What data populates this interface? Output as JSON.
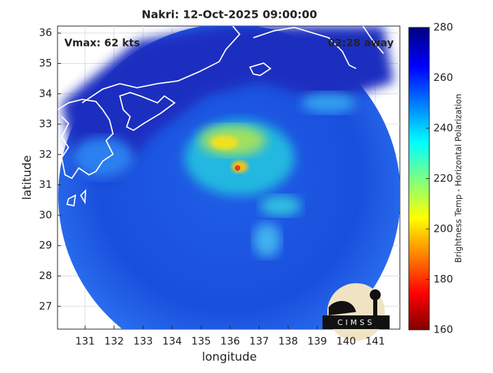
{
  "title": "Nakri: 12-Oct-2025 09:00:00",
  "annotations": {
    "vmax": "Vmax: 62 kts",
    "time_away": "02:28 away"
  },
  "x_axis": {
    "label": "longitude",
    "lim": [
      130.05,
      141.85
    ],
    "ticks": [
      131,
      132,
      133,
      134,
      135,
      136,
      137,
      138,
      139,
      140,
      141
    ]
  },
  "y_axis": {
    "label": "latitude",
    "lim": [
      26.25,
      36.23
    ],
    "ticks": [
      27,
      28,
      29,
      30,
      31,
      32,
      33,
      34,
      35,
      36
    ]
  },
  "colorbar": {
    "label": "Brightness Temp - Horizontal Polarization",
    "lim": [
      160,
      280
    ],
    "ticks": [
      160,
      180,
      200,
      220,
      240,
      260,
      280
    ]
  },
  "logo": "CIMSS"
}
